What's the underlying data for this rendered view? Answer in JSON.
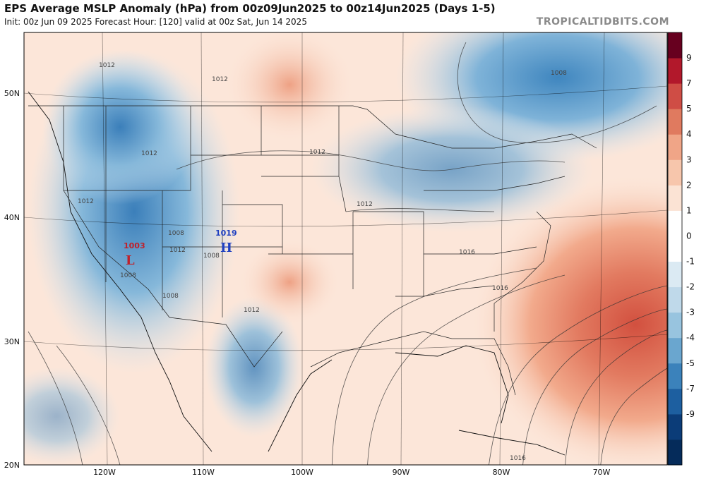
{
  "header": {
    "title": "EPS Average MSLP Anomaly (hPa) from 00z09Jun2025 to 00z14Jun2025 (Days 1-5)",
    "subtitle": "Init: 00z Jun 09 2025   Forecast Hour: [120]   valid at 00z Sat, Jun 14 2025",
    "brand": "TROPICALTIDBITS.COM"
  },
  "map": {
    "lat_labels": [
      "50N",
      "40N",
      "30N",
      "20N"
    ],
    "lon_labels": [
      "120W",
      "110W",
      "100W",
      "90W",
      "80W",
      "70W"
    ],
    "isobar_labels": [
      "1012",
      "1012",
      "1012",
      "1012",
      "1012",
      "1012",
      "1008",
      "1008",
      "1008",
      "1008",
      "1012",
      "1012",
      "1016",
      "1016",
      "1016",
      "1008"
    ],
    "centers": [
      {
        "letter": "L",
        "value": "1003",
        "color": "#c0202a"
      },
      {
        "letter": "H",
        "value": "1019",
        "color": "#2040c0"
      }
    ]
  },
  "colorbar": {
    "labels": [
      "9",
      "7",
      "5",
      "4",
      "3",
      "2",
      "1",
      "0",
      "-1",
      "-2",
      "-3",
      "-4",
      "-5",
      "-7",
      "-9"
    ],
    "colors": [
      "#67001f",
      "#b2182b",
      "#cf4d45",
      "#e07a5f",
      "#f0a587",
      "#f7c6ac",
      "#fbe3d4",
      "#ffffff",
      "#ffffff",
      "#dbeaf3",
      "#bfd9ea",
      "#98c4df",
      "#6aa6cf",
      "#3b82bb",
      "#1d5fa0",
      "#0b3c78",
      "#052b5a"
    ]
  }
}
